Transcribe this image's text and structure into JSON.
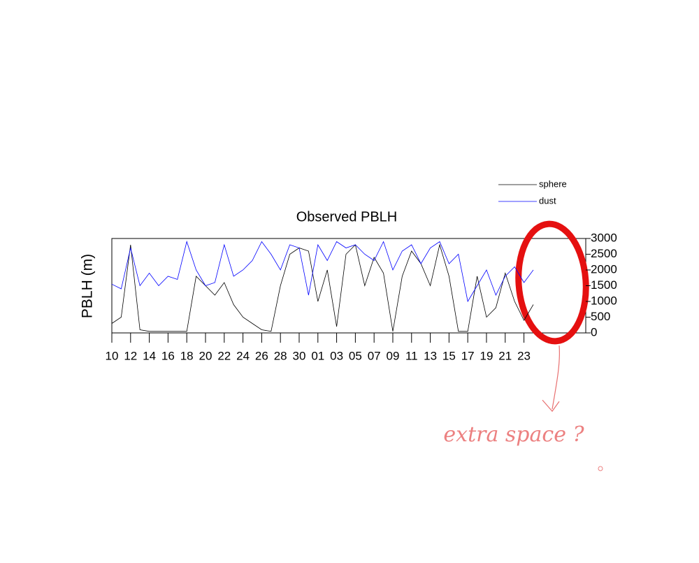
{
  "chart_data": {
    "type": "line",
    "title": "Observed PBLH",
    "ylabel": "PBLH (m)",
    "annotation": "extra space ?",
    "x": [
      0,
      1,
      2,
      3,
      4,
      5,
      6,
      7,
      8,
      9,
      10,
      11,
      12,
      13,
      14,
      15,
      16,
      17,
      18,
      19,
      20,
      21,
      22,
      23,
      24,
      25,
      26,
      27,
      28,
      29,
      30,
      31,
      32,
      33,
      34,
      35,
      36,
      37,
      38,
      39,
      40,
      41,
      42,
      43,
      44,
      45
    ],
    "series": [
      {
        "name": "sphere",
        "color": "#000000",
        "values": [
          300,
          500,
          2800,
          100,
          50,
          50,
          50,
          50,
          50,
          1800,
          1500,
          1200,
          1600,
          900,
          500,
          300,
          100,
          50,
          1500,
          2500,
          2700,
          2600,
          1000,
          2000,
          200,
          2500,
          2800,
          1500,
          2400,
          1900,
          50,
          1800,
          2600,
          2200,
          1500,
          2800,
          1800,
          50,
          50,
          1800,
          500,
          800,
          1900,
          1000,
          400,
          900
        ]
      },
      {
        "name": "dust",
        "color": "#0000ff",
        "values": [
          1550,
          1400,
          2700,
          1500,
          1900,
          1500,
          1800,
          1700,
          2900,
          2000,
          1500,
          1600,
          2800,
          1800,
          2000,
          2300,
          2900,
          2500,
          2000,
          2800,
          2700,
          1200,
          2800,
          2300,
          2900,
          2700,
          2800,
          2500,
          2300,
          2900,
          2000,
          2600,
          2800,
          2200,
          2700,
          2900,
          2200,
          2500,
          1000,
          1500,
          2000,
          1200,
          1800,
          2100,
          1600,
          2000
        ]
      }
    ],
    "xlim": [
      0,
      50.6
    ],
    "xticks": [
      {
        "value": 0,
        "label": "10"
      },
      {
        "value": 2,
        "label": "12"
      },
      {
        "value": 4,
        "label": "14"
      },
      {
        "value": 6,
        "label": "16"
      },
      {
        "value": 8,
        "label": "18"
      },
      {
        "value": 10,
        "label": "20"
      },
      {
        "value": 12,
        "label": "22"
      },
      {
        "value": 14,
        "label": "24"
      },
      {
        "value": 16,
        "label": "26"
      },
      {
        "value": 18,
        "label": "28"
      },
      {
        "value": 20,
        "label": "30"
      },
      {
        "value": 22,
        "label": "01"
      },
      {
        "value": 24,
        "label": "03"
      },
      {
        "value": 26,
        "label": "05"
      },
      {
        "value": 28,
        "label": "07"
      },
      {
        "value": 30,
        "label": "09"
      },
      {
        "value": 32,
        "label": "11"
      },
      {
        "value": 34,
        "label": "13"
      },
      {
        "value": 36,
        "label": "15"
      },
      {
        "value": 38,
        "label": "17"
      },
      {
        "value": 40,
        "label": "19"
      },
      {
        "value": 42,
        "label": "21"
      },
      {
        "value": 44,
        "label": "23"
      }
    ],
    "ylim": [
      0,
      3000
    ],
    "yticks": [
      0,
      500,
      1000,
      1500,
      2000,
      2500,
      3000
    ]
  }
}
